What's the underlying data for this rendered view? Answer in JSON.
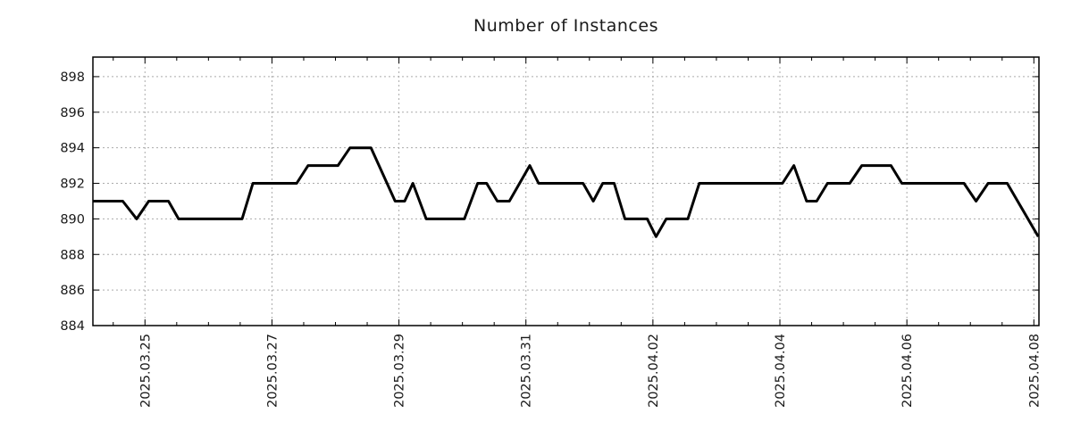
{
  "title": "Number of Instances",
  "colors": {
    "line": "#000000",
    "grid": "#ababab",
    "axis": "#000000",
    "tick_text": "#1a1a1a",
    "background": "#ffffff"
  },
  "chart_data": {
    "type": "line",
    "title": "Number of Instances",
    "xlabel": "",
    "ylabel": "",
    "grid": true,
    "legend": "none",
    "x_axis": {
      "unit": "days offset from 2025.03.25",
      "range_days": [
        -0.82,
        14.08
      ],
      "major_tick_days": [
        0,
        2,
        4,
        6,
        8,
        10,
        12,
        14
      ],
      "tick_labels": [
        "2025.03.25",
        "2025.03.27",
        "2025.03.29",
        "2025.03.31",
        "2025.04.02",
        "2025.04.04",
        "2025.04.06",
        "2025.04.08"
      ],
      "minor_tick_interval_days": 0.5
    },
    "y_axis": {
      "range": [
        884,
        899.1
      ],
      "tick_values": [
        884,
        886,
        888,
        890,
        892,
        894,
        896,
        898
      ],
      "tick_labels": [
        "884",
        "886",
        "888",
        "890",
        "892",
        "894",
        "896",
        "898"
      ]
    },
    "series": [
      {
        "name": "instances",
        "color": "#000000",
        "line_width": 3,
        "points": [
          [
            -0.82,
            891
          ],
          [
            -0.35,
            891
          ],
          [
            -0.13,
            890
          ],
          [
            0.06,
            891
          ],
          [
            0.37,
            891
          ],
          [
            0.53,
            890
          ],
          [
            1.53,
            890
          ],
          [
            1.7,
            892
          ],
          [
            2.39,
            892
          ],
          [
            2.57,
            893
          ],
          [
            3.04,
            893
          ],
          [
            3.23,
            894
          ],
          [
            3.56,
            894
          ],
          [
            3.94,
            891
          ],
          [
            4.09,
            891
          ],
          [
            4.22,
            892
          ],
          [
            4.43,
            890
          ],
          [
            5.03,
            890
          ],
          [
            5.24,
            892
          ],
          [
            5.38,
            892
          ],
          [
            5.55,
            891
          ],
          [
            5.74,
            891
          ],
          [
            6.06,
            893
          ],
          [
            6.2,
            892
          ],
          [
            6.9,
            892
          ],
          [
            7.06,
            891
          ],
          [
            7.21,
            892
          ],
          [
            7.39,
            892
          ],
          [
            7.56,
            890
          ],
          [
            7.91,
            890
          ],
          [
            8.05,
            889
          ],
          [
            8.21,
            890
          ],
          [
            8.55,
            890
          ],
          [
            8.73,
            892
          ],
          [
            10.04,
            892
          ],
          [
            10.22,
            893
          ],
          [
            10.42,
            891
          ],
          [
            10.58,
            891
          ],
          [
            10.75,
            892
          ],
          [
            11.1,
            892
          ],
          [
            11.29,
            893
          ],
          [
            11.75,
            893
          ],
          [
            11.92,
            892
          ],
          [
            12.9,
            892
          ],
          [
            13.09,
            891
          ],
          [
            13.28,
            892
          ],
          [
            13.58,
            892
          ],
          [
            14.07,
            889
          ]
        ]
      }
    ]
  }
}
